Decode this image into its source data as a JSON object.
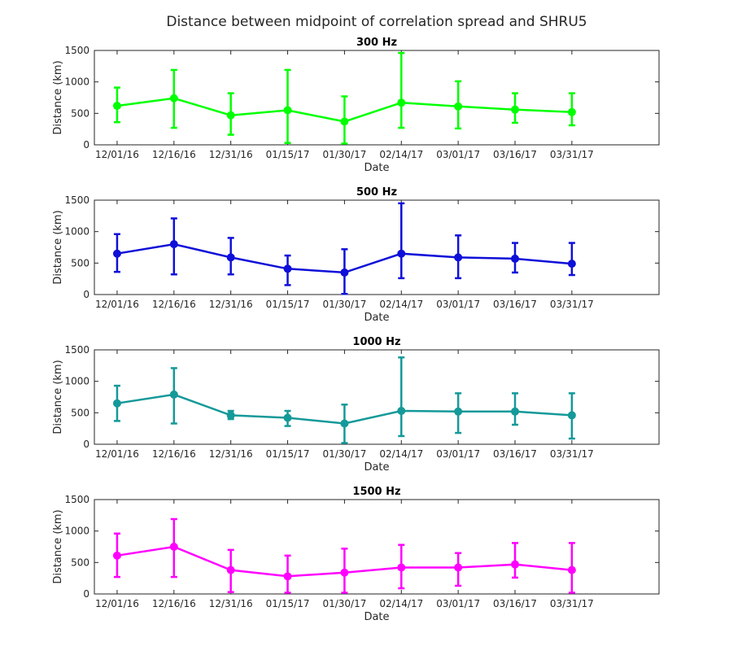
{
  "figure": {
    "title": "Distance between midpoint of correlation spread and SHRU5"
  },
  "chart_data": [
    {
      "type": "line",
      "error_bars": true,
      "title": "300 Hz",
      "xlabel": "Date",
      "ylabel": "Distance (km)",
      "color": "#00ff00",
      "xlim": [
        "11/25/16",
        "04/23/17"
      ],
      "ylim": [
        0,
        1500
      ],
      "yticks": [
        0,
        500,
        1000,
        1500
      ],
      "xticks": [
        "12/01/16",
        "12/16/16",
        "12/31/16",
        "01/15/17",
        "01/30/17",
        "02/14/17",
        "03/01/17",
        "03/16/17",
        "03/31/17"
      ],
      "x": [
        "12/01/16",
        "12/16/16",
        "12/31/16",
        "01/15/17",
        "01/30/17",
        "02/14/17",
        "03/01/17",
        "03/16/17",
        "03/31/17"
      ],
      "values": [
        620,
        740,
        470,
        550,
        370,
        670,
        610,
        560,
        520
      ],
      "lower": [
        360,
        270,
        160,
        30,
        20,
        270,
        260,
        350,
        310
      ],
      "upper": [
        910,
        1190,
        820,
        1190,
        770,
        1460,
        1010,
        820,
        820
      ]
    },
    {
      "type": "line",
      "error_bars": true,
      "title": "500 Hz",
      "xlabel": "Date",
      "ylabel": "Distance (km)",
      "color": "#0f0fd9",
      "xlim": [
        "11/25/16",
        "04/23/17"
      ],
      "ylim": [
        0,
        1500
      ],
      "yticks": [
        0,
        500,
        1000,
        1500
      ],
      "xticks": [
        "12/01/16",
        "12/16/16",
        "12/31/16",
        "01/15/17",
        "01/30/17",
        "02/14/17",
        "03/01/17",
        "03/16/17",
        "03/31/17"
      ],
      "x": [
        "12/01/16",
        "12/16/16",
        "12/31/16",
        "01/15/17",
        "01/30/17",
        "02/14/17",
        "03/01/17",
        "03/16/17",
        "03/31/17"
      ],
      "values": [
        650,
        800,
        590,
        410,
        350,
        650,
        590,
        570,
        490
      ],
      "lower": [
        360,
        320,
        320,
        150,
        10,
        260,
        260,
        350,
        310
      ],
      "upper": [
        960,
        1210,
        900,
        620,
        720,
        1450,
        940,
        820,
        820
      ]
    },
    {
      "type": "line",
      "error_bars": true,
      "title": "1000 Hz",
      "xlabel": "Date",
      "ylabel": "Distance (km)",
      "color": "#159999",
      "xlim": [
        "11/25/16",
        "04/23/17"
      ],
      "ylim": [
        0,
        1500
      ],
      "yticks": [
        0,
        500,
        1000,
        1500
      ],
      "xticks": [
        "12/01/16",
        "12/16/16",
        "12/31/16",
        "01/15/17",
        "01/30/17",
        "02/14/17",
        "03/01/17",
        "03/16/17",
        "03/31/17"
      ],
      "x": [
        "12/01/16",
        "12/16/16",
        "12/31/16",
        "01/15/17",
        "01/30/17",
        "02/14/17",
        "03/01/17",
        "03/16/17",
        "03/31/17"
      ],
      "values": [
        650,
        790,
        460,
        420,
        330,
        530,
        520,
        520,
        460
      ],
      "lower": [
        370,
        330,
        400,
        290,
        20,
        130,
        180,
        310,
        90
      ],
      "upper": [
        930,
        1210,
        530,
        530,
        630,
        1380,
        810,
        810,
        810
      ]
    },
    {
      "type": "line",
      "error_bars": true,
      "title": "1500 Hz",
      "xlabel": "Date",
      "ylabel": "Distance (km)",
      "color": "#ff00ff",
      "xlim": [
        "11/25/16",
        "04/23/17"
      ],
      "ylim": [
        0,
        1500
      ],
      "yticks": [
        0,
        500,
        1000,
        1500
      ],
      "xticks": [
        "12/01/16",
        "12/16/16",
        "12/31/16",
        "01/15/17",
        "01/30/17",
        "02/14/17",
        "03/01/17",
        "03/16/17",
        "03/31/17"
      ],
      "x": [
        "12/01/16",
        "12/16/16",
        "12/31/16",
        "01/15/17",
        "01/30/17",
        "02/14/17",
        "03/01/17",
        "03/16/17",
        "03/31/17"
      ],
      "values": [
        610,
        750,
        380,
        280,
        340,
        420,
        420,
        470,
        380
      ],
      "lower": [
        270,
        270,
        30,
        20,
        20,
        90,
        130,
        260,
        20
      ],
      "upper": [
        960,
        1190,
        700,
        610,
        720,
        780,
        650,
        810,
        810
      ]
    }
  ]
}
